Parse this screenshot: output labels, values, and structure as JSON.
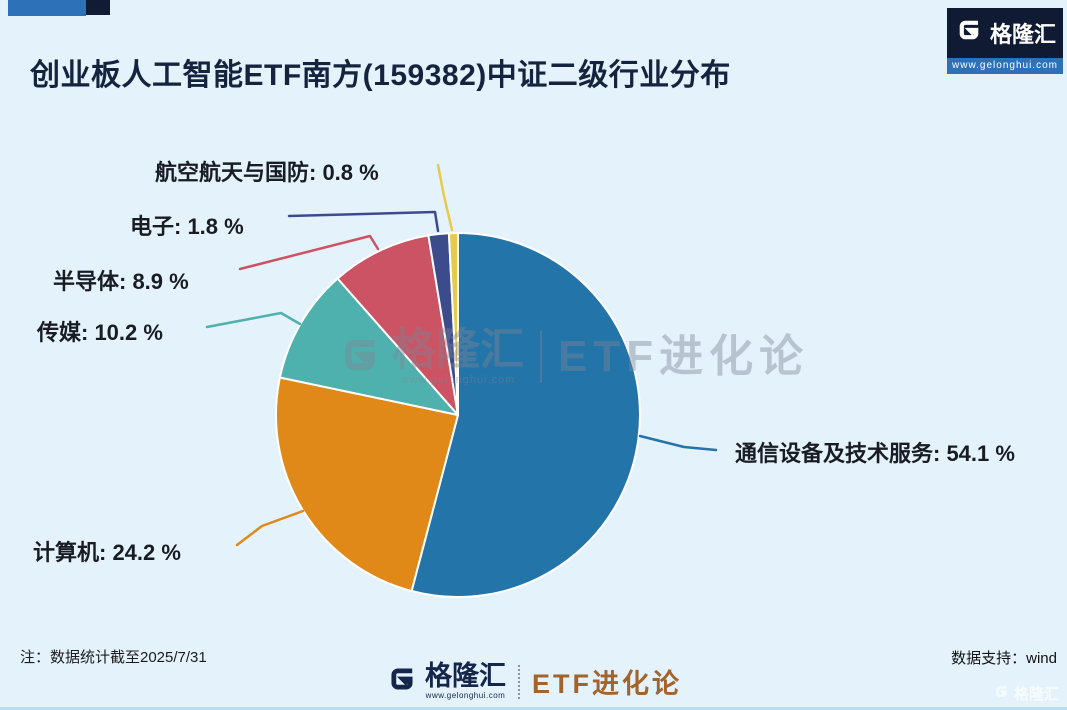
{
  "header": {
    "title": "创业板人工智能ETF南方(159382)中证二级行业分布",
    "brand": {
      "name": "格隆汇",
      "url": "www.gelonghui.com"
    }
  },
  "chart_data": {
    "type": "pie",
    "title": "创业板人工智能ETF南方(159382)中证二级行业分布",
    "unit": "%",
    "start_angle_deg": 0,
    "direction": "clockwise",
    "background": "#e4f2fc",
    "slices": [
      {
        "label": "通信设备及技术服务",
        "value": 54.1,
        "color": "#2374a8",
        "display": "通信设备及技术服务: 54.1 %"
      },
      {
        "label": "计算机",
        "value": 24.2,
        "color": "#e08818",
        "display": "计算机: 24.2 %"
      },
      {
        "label": "传媒",
        "value": 10.2,
        "color": "#4fb1ad",
        "display": "传媒: 10.2 %"
      },
      {
        "label": "半导体",
        "value": 8.9,
        "color": "#cc5363",
        "display": "半导体: 8.9 %"
      },
      {
        "label": "电子",
        "value": 1.8,
        "color": "#3c4b8c",
        "display": "电子: 1.8 %"
      },
      {
        "label": "航空航天与国防",
        "value": 0.8,
        "color": "#e7c94c",
        "display": "航空航天与国防: 0.8 %"
      }
    ]
  },
  "watermark": {
    "brand": "格隆汇",
    "url": "www.gelonghui.com",
    "series": "ETF进化论"
  },
  "footer": {
    "note": "注：数据统计截至2025/7/31",
    "source": "数据支持：wind",
    "brand": "格隆汇",
    "brand_url": "www.gelonghui.com",
    "series": "ETF进化论",
    "corner_brand": "格隆汇"
  }
}
